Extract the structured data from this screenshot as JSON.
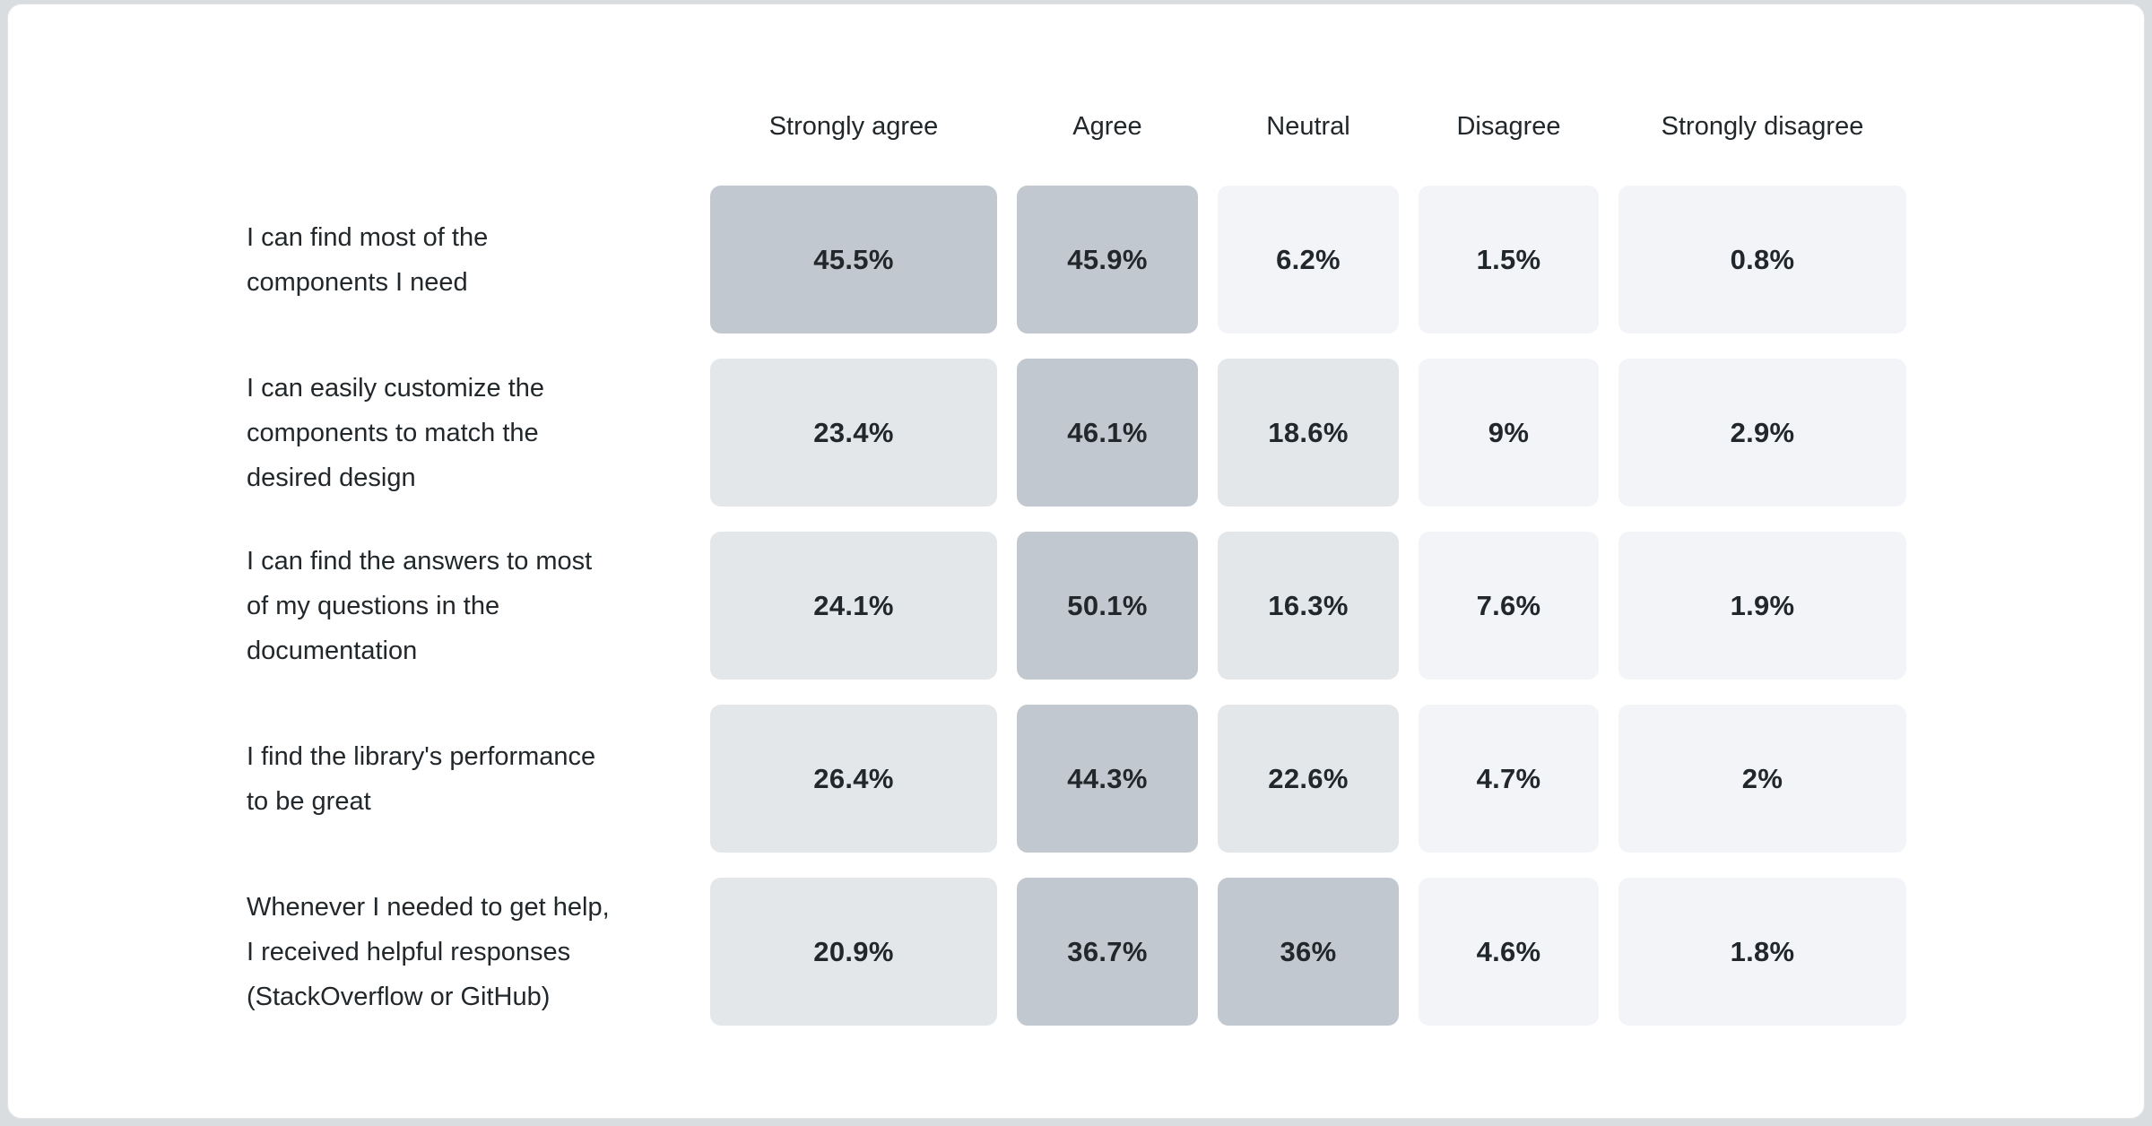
{
  "theme": {
    "page_background": "#d9dde0",
    "card_background": "#ffffff",
    "card_border": "#e2e5e8",
    "text_color": "#21272a"
  },
  "heatmap": {
    "columns": [
      "Strongly agree",
      "Agree",
      "Neutral",
      "Disagree",
      "Strongly disagree"
    ],
    "rows": [
      {
        "label": "I can find most of the\ncomponents I need",
        "values": [
          "45.5%",
          "45.9%",
          "6.2%",
          "1.5%",
          "0.8%"
        ]
      },
      {
        "label": "I can easily customize the\ncomponents to match the\ndesired design",
        "values": [
          "23.4%",
          "46.1%",
          "18.6%",
          "9%",
          "2.9%"
        ]
      },
      {
        "label": "I can find the answers to most\nof my questions in the\ndocumentation",
        "values": [
          "24.1%",
          "50.1%",
          "16.3%",
          "7.6%",
          "1.9%"
        ]
      },
      {
        "label": "I find the library's performance\nto be great",
        "values": [
          "26.4%",
          "44.3%",
          "22.6%",
          "4.7%",
          "2%"
        ]
      },
      {
        "label": "Whenever I needed to get help,\nI received helpful responses\n(StackOverflow or GitHub)",
        "values": [
          "20.9%",
          "36.7%",
          "36%",
          "4.6%",
          "1.8%"
        ]
      }
    ],
    "tone_colors": {
      "high": "#c1c8cf",
      "mid": "#e4e7ea",
      "low": "#f2f4f7"
    },
    "tone_thresholds": {
      "high_min": 30,
      "mid_min": 10
    }
  },
  "chart_data": {
    "type": "heatmap",
    "title": "",
    "categories": [
      "Strongly agree",
      "Agree",
      "Neutral",
      "Disagree",
      "Strongly disagree"
    ],
    "rows": [
      "I can find most of the components I need",
      "I can easily customize the components to match the desired design",
      "I can find the answers to most of my questions in the documentation",
      "I find the library's performance to be great",
      "Whenever I needed to get help, I received helpful responses (StackOverflow or GitHub)"
    ],
    "values_percent": [
      [
        45.5,
        45.9,
        6.2,
        1.5,
        0.8
      ],
      [
        23.4,
        46.1,
        18.6,
        9.0,
        2.9
      ],
      [
        24.1,
        50.1,
        16.3,
        7.6,
        1.9
      ],
      [
        26.4,
        44.3,
        22.6,
        4.7,
        2.0
      ],
      [
        20.9,
        36.7,
        36.0,
        4.6,
        1.8
      ]
    ],
    "legend": "none",
    "color_scale": "higher value = darker gray-blue cell"
  }
}
